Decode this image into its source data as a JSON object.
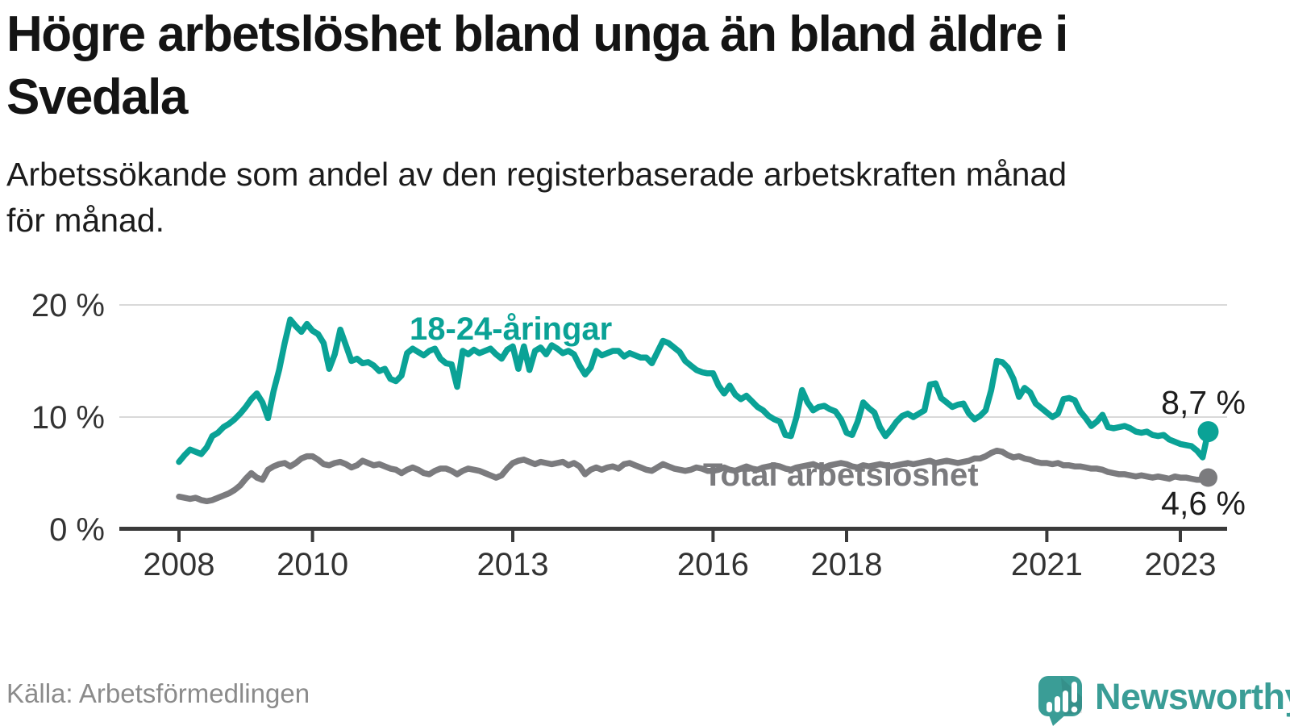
{
  "header": {
    "title_line1": "Högre arbetslöshet bland unga än bland äldre i",
    "title_line2": "Svedala",
    "subtitle_line1": "Arbetssökande som andel av den registerbaserade arbetskraften månad",
    "subtitle_line2": "för månad."
  },
  "footer": {
    "source": "Källa: Arbetsförmedlingen",
    "brand_name": "Newsworthy"
  },
  "colors": {
    "accent_teal": "#0aa296",
    "line_gray": "#7b7b7e",
    "brand_teal": "#3a9d96",
    "axis_dark": "#3a3a3a",
    "grid_gray": "#d9d9d9"
  },
  "chart_data": {
    "type": "line",
    "title": "Högre arbetslöshet bland unga än bland äldre i Svedala",
    "subtitle": "Arbetssökande som andel av den registerbaserade arbetskraften månad för månad.",
    "unit": "%",
    "frequency": "monthly",
    "x_start": "2008-01",
    "x_end": "2023-06",
    "ylim": [
      0,
      21
    ],
    "grid": "horizontal",
    "legend_position": "inline-labels",
    "y_ticks": [
      0,
      10,
      20
    ],
    "y_tick_labels": [
      "0 %",
      "10 %",
      "20 %"
    ],
    "x_ticks": [
      "2008",
      "2010",
      "2013",
      "2016",
      "2018",
      "2021",
      "2023"
    ],
    "series": [
      {
        "name": "18-24-åringar",
        "color": "#0aa296",
        "end_label": "8,7 %",
        "last_value": 8.7,
        "values": [
          6.0,
          6.6,
          7.1,
          6.9,
          6.7,
          7.3,
          8.3,
          8.6,
          9.1,
          9.4,
          9.8,
          10.3,
          10.9,
          11.6,
          12.1,
          11.3,
          9.9,
          12.3,
          14.2,
          16.6,
          18.7,
          18.1,
          17.6,
          18.3,
          17.7,
          17.4,
          16.6,
          14.3,
          15.6,
          17.8,
          16.4,
          15.0,
          15.2,
          14.8,
          14.9,
          14.6,
          14.1,
          14.3,
          13.4,
          13.2,
          13.7,
          15.7,
          16.1,
          15.8,
          15.5,
          15.9,
          16.1,
          15.2,
          14.8,
          14.7,
          12.7,
          15.9,
          15.6,
          16.0,
          15.7,
          15.9,
          16.1,
          15.6,
          15.2,
          16.0,
          16.3,
          14.3,
          16.3,
          14.2,
          15.9,
          16.2,
          15.6,
          16.4,
          16.1,
          15.7,
          15.9,
          15.6,
          14.6,
          13.8,
          14.4,
          15.9,
          15.5,
          15.7,
          15.9,
          15.9,
          15.4,
          15.7,
          15.5,
          15.3,
          15.3,
          14.8,
          15.8,
          16.8,
          16.6,
          16.2,
          15.8,
          15.0,
          14.6,
          14.2,
          14.0,
          13.9,
          13.9,
          12.8,
          12.1,
          12.8,
          12.0,
          11.6,
          11.9,
          11.4,
          10.9,
          10.6,
          10.1,
          9.8,
          9.6,
          8.4,
          8.3,
          10.0,
          12.4,
          11.3,
          10.6,
          10.9,
          11.0,
          10.7,
          10.5,
          9.8,
          8.6,
          8.4,
          9.6,
          11.3,
          10.8,
          10.4,
          9.1,
          8.3,
          8.9,
          9.6,
          10.1,
          10.3,
          10.0,
          10.3,
          10.6,
          12.9,
          13.0,
          11.7,
          11.3,
          10.9,
          11.1,
          11.2,
          10.3,
          9.8,
          10.1,
          10.6,
          12.4,
          15.0,
          14.9,
          14.4,
          13.4,
          11.8,
          12.6,
          12.2,
          11.2,
          10.8,
          10.4,
          10.0,
          10.3,
          11.6,
          11.7,
          11.5,
          10.5,
          9.9,
          9.2,
          9.6,
          10.2,
          9.1,
          9.0,
          9.1,
          9.2,
          9.0,
          8.7,
          8.6,
          8.7,
          8.4,
          8.3,
          8.4,
          8.0,
          7.8,
          7.6,
          7.5,
          7.4,
          7.0,
          6.4,
          8.7
        ]
      },
      {
        "name": "Total arbetslöshet",
        "color": "#7b7b7e",
        "end_label": "4,6 %",
        "last_value": 4.6,
        "values": [
          2.9,
          2.8,
          2.7,
          2.8,
          2.6,
          2.5,
          2.6,
          2.8,
          3.0,
          3.2,
          3.5,
          3.9,
          4.5,
          5.0,
          4.6,
          4.4,
          5.3,
          5.6,
          5.8,
          5.9,
          5.6,
          5.9,
          6.3,
          6.5,
          6.5,
          6.2,
          5.8,
          5.7,
          5.9,
          6.0,
          5.8,
          5.5,
          5.7,
          6.1,
          5.9,
          5.7,
          5.8,
          5.6,
          5.4,
          5.3,
          5.0,
          5.3,
          5.5,
          5.3,
          5.0,
          4.9,
          5.2,
          5.4,
          5.4,
          5.2,
          4.9,
          5.2,
          5.4,
          5.3,
          5.2,
          5.0,
          4.8,
          4.6,
          4.8,
          5.4,
          5.9,
          6.1,
          6.2,
          6.0,
          5.8,
          6.0,
          5.9,
          5.8,
          5.9,
          6.0,
          5.7,
          5.9,
          5.6,
          4.9,
          5.3,
          5.5,
          5.3,
          5.5,
          5.6,
          5.4,
          5.8,
          5.9,
          5.7,
          5.5,
          5.3,
          5.2,
          5.5,
          5.8,
          5.6,
          5.4,
          5.3,
          5.2,
          5.3,
          5.5,
          5.4,
          5.2,
          5.2,
          5.3,
          5.5,
          5.3,
          5.2,
          5.4,
          5.6,
          5.4,
          5.3,
          5.5,
          5.6,
          5.7,
          5.6,
          5.4,
          5.3,
          5.5,
          5.6,
          5.7,
          5.8,
          5.6,
          5.5,
          5.7,
          5.8,
          5.9,
          5.8,
          5.6,
          5.5,
          5.7,
          5.6,
          5.7,
          5.8,
          5.7,
          5.6,
          5.7,
          5.8,
          5.9,
          5.8,
          5.9,
          6.0,
          6.1,
          5.9,
          6.0,
          6.1,
          6.0,
          5.9,
          6.0,
          6.1,
          6.3,
          6.3,
          6.5,
          6.8,
          7.0,
          6.9,
          6.6,
          6.4,
          6.5,
          6.3,
          6.2,
          6.0,
          5.9,
          5.9,
          5.8,
          5.9,
          5.7,
          5.7,
          5.6,
          5.6,
          5.5,
          5.4,
          5.4,
          5.3,
          5.1,
          5.0,
          4.9,
          4.9,
          4.8,
          4.7,
          4.8,
          4.7,
          4.6,
          4.7,
          4.6,
          4.5,
          4.7,
          4.6,
          4.6,
          4.5,
          4.4,
          4.4,
          4.6
        ]
      }
    ]
  }
}
